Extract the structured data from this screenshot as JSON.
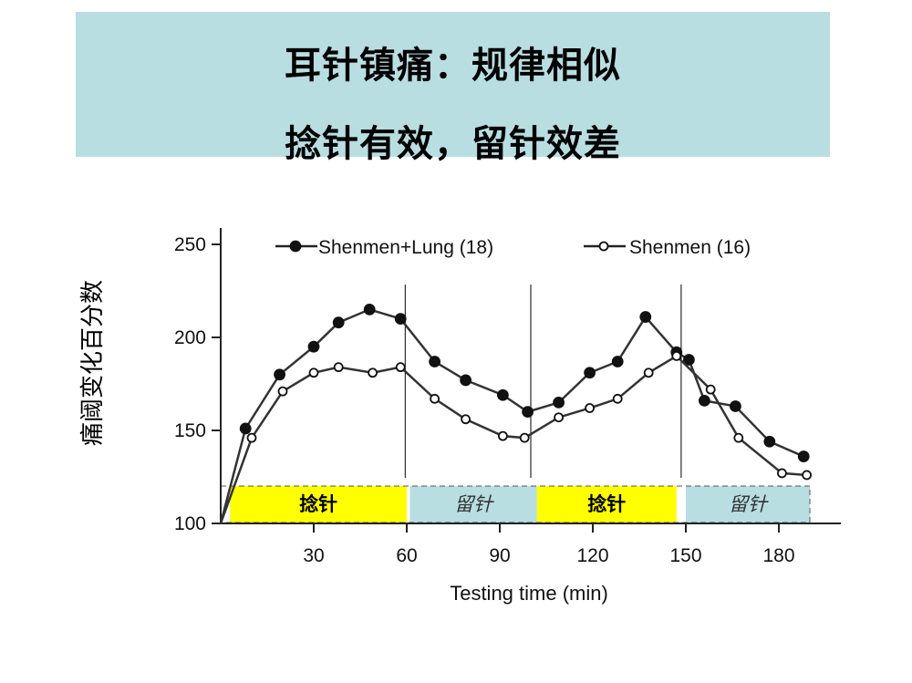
{
  "slide": {
    "title_line1": "耳针镇痛：规律相似",
    "title_line2": "捻针有效，留针效差"
  },
  "colors": {
    "title_bg": "#b8dee2",
    "twirl_phase": "#ffff00",
    "retain_phase": "#b8dee2",
    "series_line": "#333333"
  },
  "chart_data": {
    "type": "line",
    "ylabel": "痛阈变化百分数",
    "xlabel": "Testing time (min)",
    "xlim": [
      0,
      200
    ],
    "ylim": [
      100,
      250
    ],
    "xticks": [
      30,
      60,
      90,
      120,
      150,
      180
    ],
    "yticks": [
      100,
      150,
      200,
      250
    ],
    "legend": [
      {
        "label": "Shenmen+Lung (18)",
        "marker": "filled-circle"
      },
      {
        "label": "Shenmen (16)",
        "marker": "open-circle"
      }
    ],
    "legend_position": "top",
    "series": [
      {
        "name": "Shenmen+Lung (18)",
        "marker": "filled",
        "x": [
          0,
          8,
          19,
          30,
          38,
          48,
          58,
          69,
          79,
          91,
          99,
          109,
          119,
          128,
          137,
          147,
          151,
          156,
          166,
          177,
          188
        ],
        "y": [
          100,
          151,
          180,
          195,
          208,
          215,
          210,
          187,
          177,
          169,
          160,
          165,
          181,
          187,
          211,
          192,
          188,
          166,
          163,
          144,
          136
        ]
      },
      {
        "name": "Shenmen (16)",
        "marker": "open",
        "x": [
          0,
          10,
          20,
          30,
          38,
          49,
          58,
          69,
          79,
          91,
          98,
          109,
          119,
          128,
          138,
          147,
          158,
          167,
          181,
          189
        ],
        "y": [
          100,
          146,
          171,
          181,
          184,
          181,
          184,
          167,
          156,
          147,
          146,
          157,
          162,
          167,
          181,
          190,
          172,
          146,
          127,
          126
        ]
      }
    ],
    "phase_dividers_x": [
      59.5,
      100,
      148.5
    ],
    "phases": [
      {
        "label": "捻针",
        "x_start": 3,
        "x_end": 60,
        "type": "twirl"
      },
      {
        "label": "留针",
        "x_start": 61,
        "x_end": 102,
        "type": "retain"
      },
      {
        "label": "捻针",
        "x_start": 102,
        "x_end": 147,
        "type": "twirl"
      },
      {
        "label": "留针",
        "x_start": 150,
        "x_end": 190,
        "type": "retain"
      }
    ]
  }
}
